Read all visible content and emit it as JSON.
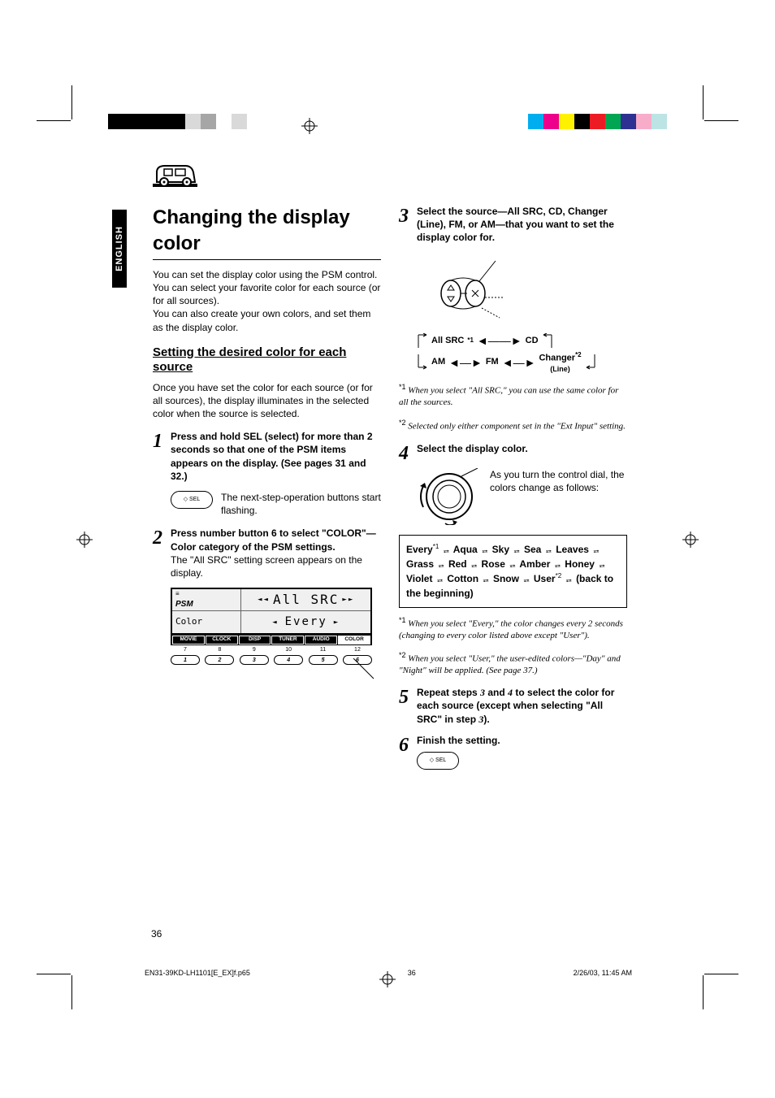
{
  "reg_bars": {
    "left_top": [
      "#000000",
      "#000000",
      "#000000",
      "#000000",
      "#000000",
      "#d9d9d9",
      "#a6a6a6",
      "#ffffff",
      "#d9d9d9"
    ],
    "right_top": [
      "#00aeef",
      "#ec008c",
      "#fff200",
      "#000000",
      "#ed1c24",
      "#00a651",
      "#2e3192",
      "#f7adc9",
      "#bce4e5"
    ]
  },
  "lang_tab": "ENGLISH",
  "page_number": "36",
  "footer": {
    "file": "EN31-39KD-LH1101[E_EX]f.p65",
    "page": "36",
    "date": "2/26/03, 11:45 AM"
  },
  "left": {
    "title": "Changing the display color",
    "intro1": "You can set the display color using the PSM control. You can select your favorite color for each source (or for all sources).",
    "intro2": "You can also create your own colors, and set them as the display color.",
    "subheading": "Setting the desired color for each source",
    "para1": "Once you have set the color for each source (or for all sources), the display illuminates in the selected color when the source is selected.",
    "step1_bold": "Press and hold SEL (select) for more than 2 seconds so that one of the PSM items appears on the display. (See pages 31 and 32.)",
    "step1_text": "The next-step-operation buttons start flashing.",
    "step2_bold": "Press number button 6 to select \"COLOR\"—Color category of the PSM settings.",
    "step2_text": "The \"All SRC\" setting screen appears on the display.",
    "display": {
      "psm": "PSM",
      "src_text": "All  SRC",
      "color_label": "Color",
      "every_text": "Every",
      "menu": [
        "MOVIE",
        "CLOCK",
        "DISP",
        "TUNER",
        "AUDIO",
        "COLOR"
      ],
      "numbers_top": [
        "7",
        "8",
        "9",
        "10",
        "11",
        "12"
      ],
      "numbers": [
        "1",
        "2",
        "3",
        "4",
        "5",
        "6"
      ]
    }
  },
  "right": {
    "step3_bold": "Select the source—All SRC, CD, Changer (Line), FM, or AM—that you want to set the display color for.",
    "sources": {
      "allsrc": "All SRC",
      "cd": "CD",
      "am": "AM",
      "fm": "FM",
      "changer": "Changer",
      "line": "(Line)"
    },
    "fn3_1": "When you select \"All SRC,\" you can use the same color for all the sources.",
    "fn3_2": "Selected only either component set in the \"Ext Input\" setting.",
    "step4_bold": "Select the display color.",
    "step4_text": "As you turn the control dial, the colors change as follows:",
    "color_cycle": {
      "colors": [
        "Every",
        "Aqua",
        "Sky",
        "Sea",
        "Leaves",
        "Grass",
        "Red",
        "Rose",
        "Amber",
        "Honey",
        "Violet",
        "Cotton",
        "Snow",
        "User"
      ],
      "tail": "(back to the beginning)"
    },
    "fn4_1": "When you select \"Every,\" the color changes every 2 seconds (changing to every color listed above except \"User\").",
    "fn4_2": "When you select \"User,\" the user-edited colors—\"Day\" and \"Night\" will be applied. (See page 37.)",
    "step5_pre": "Repeat steps ",
    "step5_s3": "3",
    "step5_mid1": " and ",
    "step5_s4": "4",
    "step5_mid2": " to select the color for each source (except when selecting \"All SRC\" in step ",
    "step5_s3b": "3",
    "step5_post": ").",
    "step6_bold": "Finish the setting."
  }
}
